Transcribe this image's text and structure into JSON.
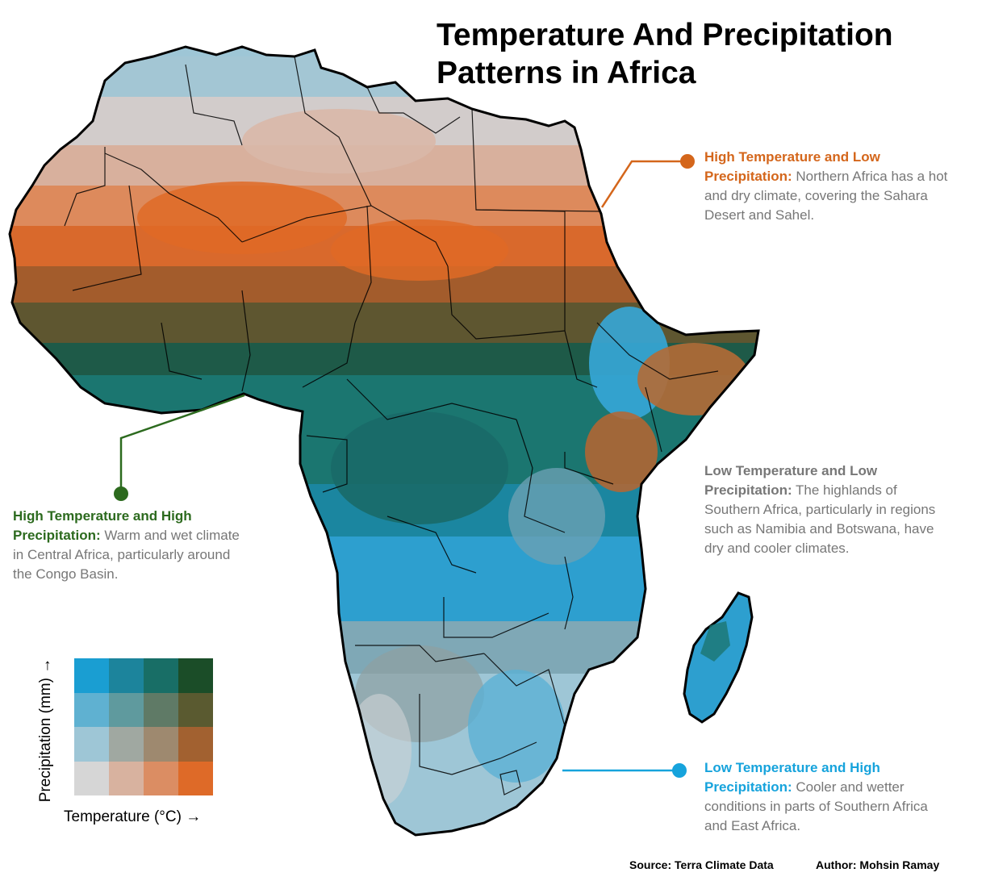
{
  "title": "Temperature And Precipitation Patterns in Africa",
  "annotations": {
    "ne": {
      "heading": "High Temperature and Low Precipitation:",
      "body": " Northern Africa has a hot and dry climate, covering the Sahara Desert and Sahel.",
      "color": "#d4661b"
    },
    "w": {
      "heading": "High Temperature and High Precipitation:",
      "body": " Warm and wet climate in Central Africa, particularly around the Congo Basin.",
      "color": "#2c6a1e"
    },
    "e": {
      "heading": "Low Temperature and Low Precipitation:",
      "body": " The highlands of Southern Africa, particularly in regions such as Namibia and Botswana, have dry and cooler climates.",
      "color": "#777777"
    },
    "se": {
      "heading": "Low Temperature and High Precipitation:",
      "body": " Cooler and wetter conditions in parts of Southern Africa and East Africa.",
      "color": "#16a3dc"
    }
  },
  "legend": {
    "x_label": "Temperature (°C) →",
    "y_label": "Precipitation (mm) →",
    "colors_top_to_bottom": [
      [
        "#1a9ed2",
        "#1c849c",
        "#186e66",
        "#1b4d28"
      ],
      [
        "#5fb1d1",
        "#5f9a9e",
        "#5f7a66",
        "#5a5a30"
      ],
      [
        "#9ec6d6",
        "#a0a8a1",
        "#9e896f",
        "#a26130"
      ],
      [
        "#d6d6d6",
        "#d8b29f",
        "#db8d63",
        "#de6a28"
      ]
    ]
  },
  "footer": {
    "source": "Source: Terra Climate Data",
    "author": "Author: Mohsin Ramay"
  }
}
